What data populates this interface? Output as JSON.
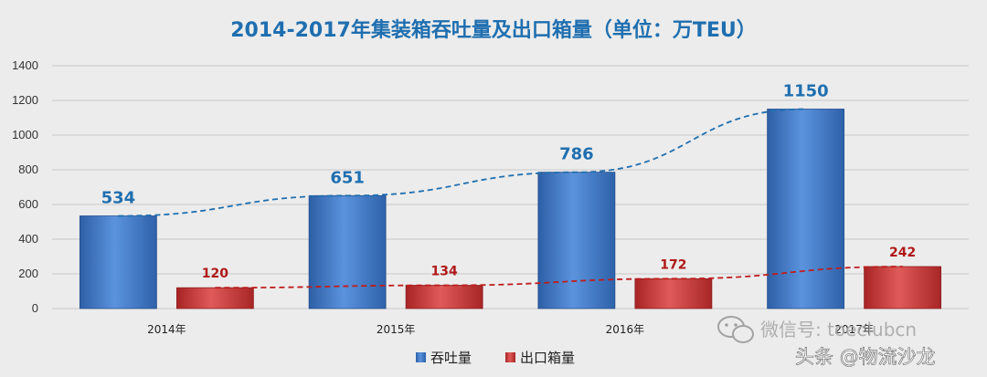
{
  "chart_data": {
    "type": "bar",
    "title": "2014-2017年集装箱吞吐量及出口箱量（单位：万TEU）",
    "categories": [
      "2014年",
      "2015年",
      "2016年",
      "2017年"
    ],
    "series": [
      {
        "name": "吞吐量",
        "values": [
          534,
          651,
          786,
          1150
        ],
        "color": "#3a78c8",
        "label_color": "#1f6fb0"
      },
      {
        "name": "出口箱量",
        "values": [
          120,
          134,
          172,
          242
        ],
        "color": "#cc3333",
        "label_color": "#b01818"
      }
    ],
    "yticks": [
      0,
      200,
      400,
      600,
      800,
      1000,
      1200,
      1400
    ],
    "ylim": [
      0,
      1400
    ],
    "grid": true,
    "trendlines": true,
    "legend_position": "bottom",
    "xlabel": "",
    "ylabel": ""
  },
  "colors": {
    "background": "#ececec",
    "title": "#1f6fb0",
    "grid": "#c8c8c8"
  },
  "watermark": {
    "wechat": "微信号: toeclubcn",
    "wechat_icon": "wechat-icon",
    "toutiao": "头条 @物流沙龙"
  }
}
